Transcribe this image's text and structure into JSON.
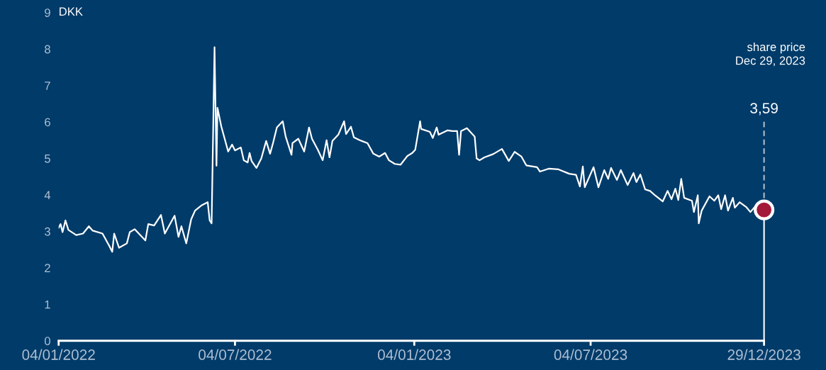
{
  "chart_data": {
    "type": "line",
    "ylabel": "DKK",
    "x": [
      "2022-01-04",
      "2022-01-06",
      "2022-01-08",
      "2022-01-11",
      "2022-01-14",
      "2022-01-22",
      "2022-01-29",
      "2022-02-04",
      "2022-02-08",
      "2022-02-18",
      "2022-02-25",
      "2022-02-28",
      "2022-03-02",
      "2022-03-07",
      "2022-03-15",
      "2022-03-18",
      "2022-03-23",
      "2022-04-03",
      "2022-04-06",
      "2022-04-12",
      "2022-04-19",
      "2022-04-23",
      "2022-05-03",
      "2022-05-07",
      "2022-05-10",
      "2022-05-15",
      "2022-05-20",
      "2022-05-24",
      "2022-05-31",
      "2022-06-06",
      "2022-06-08",
      "2022-06-10",
      "2022-06-13",
      "2022-06-15",
      "2022-06-16",
      "2022-06-20",
      "2022-06-27",
      "2022-07-01",
      "2022-07-04",
      "2022-07-10",
      "2022-07-13",
      "2022-07-17",
      "2022-07-19",
      "2022-07-21",
      "2022-07-26",
      "2022-07-31",
      "2022-08-05",
      "2022-08-09",
      "2022-08-12",
      "2022-08-16",
      "2022-08-22",
      "2022-08-25",
      "2022-08-31",
      "2022-09-01",
      "2022-09-07",
      "2022-09-13",
      "2022-09-18",
      "2022-09-21",
      "2022-09-27",
      "2022-10-02",
      "2022-10-06",
      "2022-10-09",
      "2022-10-12",
      "2022-10-18",
      "2022-10-24",
      "2022-10-26",
      "2022-10-31",
      "2022-11-03",
      "2022-11-09",
      "2022-11-17",
      "2022-11-23",
      "2022-11-29",
      "2022-12-05",
      "2022-12-09",
      "2022-12-15",
      "2022-12-21",
      "2022-12-28",
      "2023-01-02",
      "2023-01-05",
      "2023-01-10",
      "2023-01-11",
      "2023-01-20",
      "2023-01-23",
      "2023-01-27",
      "2023-01-29",
      "2023-02-07",
      "2023-02-12",
      "2023-02-17",
      "2023-02-19",
      "2023-02-21",
      "2023-02-27",
      "2023-03-07",
      "2023-03-09",
      "2023-03-12",
      "2023-03-17",
      "2023-03-26",
      "2023-04-04",
      "2023-04-11",
      "2023-04-17",
      "2023-04-24",
      "2023-04-29",
      "2023-05-10",
      "2023-05-13",
      "2023-05-22",
      "2023-06-01",
      "2023-06-12",
      "2023-06-19",
      "2023-06-23",
      "2023-06-26",
      "2023-06-28",
      "2023-07-07",
      "2023-07-12",
      "2023-07-18",
      "2023-07-22",
      "2023-07-25",
      "2023-07-31",
      "2023-08-04",
      "2023-08-11",
      "2023-08-17",
      "2023-08-20",
      "2023-08-24",
      "2023-08-29",
      "2023-09-03",
      "2023-09-08",
      "2023-09-16",
      "2023-09-21",
      "2023-09-25",
      "2023-09-29",
      "2023-10-02",
      "2023-10-05",
      "2023-10-08",
      "2023-10-16",
      "2023-10-18",
      "2023-10-22",
      "2023-10-23",
      "2023-10-26",
      "2023-11-03",
      "2023-11-08",
      "2023-11-12",
      "2023-11-15",
      "2023-11-19",
      "2023-11-22",
      "2023-11-27",
      "2023-11-29",
      "2023-12-04",
      "2023-12-11",
      "2023-12-15",
      "2023-12-21",
      "2023-12-29"
    ],
    "series": [
      {
        "color": "#ffffff",
        "values": [
          3.1,
          3.2,
          2.98,
          3.3,
          3.04,
          2.9,
          2.94,
          3.14,
          3.02,
          2.94,
          2.6,
          2.44,
          2.94,
          2.55,
          2.67,
          2.98,
          3.06,
          2.75,
          3.2,
          3.16,
          3.45,
          2.94,
          3.43,
          2.85,
          3.14,
          2.67,
          3.33,
          3.57,
          3.72,
          3.8,
          3.3,
          3.22,
          8.05,
          4.8,
          6.39,
          5.87,
          5.19,
          5.38,
          5.22,
          5.3,
          4.95,
          4.89,
          5.15,
          4.93,
          4.74,
          5.0,
          5.48,
          5.13,
          5.42,
          5.85,
          6.02,
          5.6,
          5.1,
          5.42,
          5.54,
          5.19,
          5.85,
          5.54,
          5.24,
          4.95,
          5.5,
          5.03,
          5.48,
          5.65,
          6.02,
          5.67,
          5.87,
          5.58,
          5.5,
          5.42,
          5.13,
          5.05,
          5.15,
          4.95,
          4.85,
          4.83,
          5.07,
          5.15,
          5.24,
          6.02,
          5.81,
          5.73,
          5.56,
          5.85,
          5.65,
          5.77,
          5.75,
          5.75,
          5.1,
          5.75,
          5.83,
          5.6,
          5.0,
          4.95,
          5.03,
          5.12,
          5.26,
          4.93,
          5.18,
          5.05,
          4.81,
          4.76,
          4.64,
          4.72,
          4.7,
          4.58,
          4.55,
          4.23,
          4.78,
          4.21,
          4.76,
          4.21,
          4.68,
          4.44,
          4.74,
          4.41,
          4.68,
          4.27,
          4.6,
          4.35,
          4.56,
          4.15,
          4.11,
          3.99,
          3.82,
          4.11,
          3.88,
          4.17,
          3.86,
          4.44,
          3.92,
          3.84,
          3.53,
          3.99,
          3.22,
          3.57,
          3.96,
          3.84,
          3.99,
          3.61,
          3.99,
          3.57,
          3.92,
          3.65,
          3.8,
          3.66,
          3.53,
          3.72,
          3.59
        ]
      }
    ],
    "xlim": [
      "2022-01-04",
      "2023-12-29"
    ],
    "xticks": [
      {
        "value": "2022-01-04",
        "label": "04/01/2022"
      },
      {
        "value": "2022-07-04",
        "label": "04/07/2022"
      },
      {
        "value": "2023-01-04",
        "label": "04/01/2023"
      },
      {
        "value": "2023-07-04",
        "label": "04/07/2023"
      },
      {
        "value": "2023-12-29",
        "label": "29/12/2023"
      }
    ],
    "ylim": [
      0,
      9
    ],
    "yticks": [
      0,
      1,
      2,
      3,
      4,
      5,
      6,
      7,
      8,
      9
    ],
    "grid": false,
    "marker": "none",
    "line_style": "solid",
    "ref_lines": [
      {
        "axis": "x",
        "value": "2023-12-29",
        "label": null,
        "color": "#ffffff"
      }
    ],
    "annotations": [
      "share price\nDec 29, 2023",
      "3,59"
    ]
  }
}
